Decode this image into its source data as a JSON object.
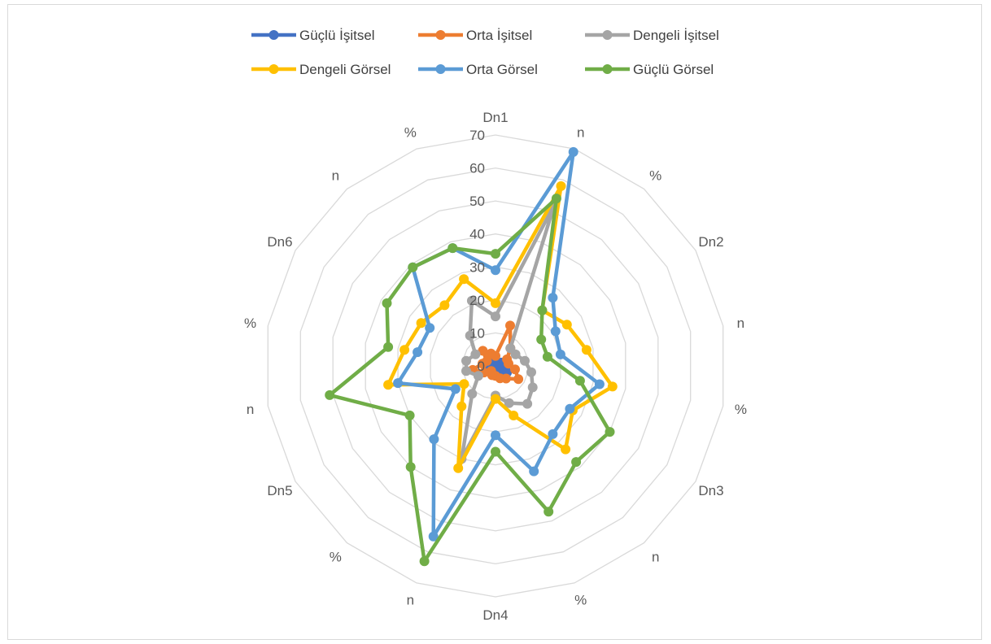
{
  "chart_data": {
    "type": "radar",
    "categories": [
      "n",
      "%",
      "Dn2",
      "n",
      "%",
      "Dn3",
      "n",
      "%",
      "Dn4",
      "n",
      "%",
      "Dn5",
      "n",
      "%",
      "Dn6",
      "n",
      "%",
      "Dn1"
    ],
    "category_labels": [
      {
        "text": "Dn1",
        "anchor": "end"
      },
      {
        "text": "n",
        "anchor": "start"
      },
      {
        "text": "%",
        "anchor": "end"
      },
      {
        "text": "Dn2",
        "anchor": "start"
      },
      {
        "text": "n",
        "anchor": "start"
      },
      {
        "text": "%",
        "anchor": "start"
      },
      {
        "text": "Dn3",
        "anchor": "start"
      },
      {
        "text": "n",
        "anchor": "start"
      },
      {
        "text": "%",
        "anchor": "start"
      },
      {
        "text": "Dn4",
        "anchor": "end"
      },
      {
        "text": "n",
        "anchor": "start"
      },
      {
        "text": "%",
        "anchor": "end"
      },
      {
        "text": "Dn5",
        "anchor": "end"
      },
      {
        "text": "n",
        "anchor": "end"
      },
      {
        "text": "%",
        "anchor": "end"
      },
      {
        "text": "Dn6",
        "anchor": "end"
      },
      {
        "text": "n",
        "anchor": "end"
      },
      {
        "text": "%",
        "anchor": "end"
      }
    ],
    "r_ticks": [
      "0",
      "10",
      "20",
      "30",
      "40",
      "50",
      "60",
      "70"
    ],
    "r_range": [
      0,
      70
    ],
    "grid": true,
    "legend_position": "top",
    "series": [
      {
        "name": "Güçlü İşitsel",
        "color": "#4472C4",
        "values": [
          0,
          0,
          2,
          2,
          3,
          4,
          0,
          2,
          0,
          0,
          0,
          0,
          1,
          2,
          0,
          1,
          2,
          0
        ]
      },
      {
        "name": "Orta İşitsel",
        "color": "#ED7D31",
        "values": [
          13,
          7,
          4,
          4,
          6,
          8,
          5,
          4,
          3,
          3,
          2,
          4,
          7,
          4,
          3,
          6,
          4,
          3
        ]
      },
      {
        "name": "Dengeli İşitsel",
        "color": "#A5A5A5",
        "values": [
          52,
          7,
          7,
          9,
          11,
          13,
          15,
          12,
          9,
          30,
          11,
          6,
          9,
          9,
          7,
          12,
          21,
          15
        ]
      },
      {
        "name": "Dengeli Görsel",
        "color": "#FFC000",
        "values": [
          58,
          22,
          25,
          28,
          36,
          27,
          33,
          16,
          10,
          33,
          16,
          11,
          33,
          28,
          26,
          24,
          28,
          19
        ]
      },
      {
        "name": "Orta Görsel",
        "color": "#5B9BD5",
        "values": [
          69,
          27,
          21,
          20,
          32,
          26,
          27,
          34,
          21,
          55,
          29,
          14,
          30,
          24,
          23,
          39,
          38,
          29
        ]
      },
      {
        "name": "Güçlü Görsel",
        "color": "#70AD47",
        "values": [
          54,
          22,
          16,
          16,
          26,
          40,
          38,
          47,
          26,
          63,
          40,
          30,
          51,
          33,
          38,
          39,
          38,
          34
        ]
      }
    ]
  }
}
